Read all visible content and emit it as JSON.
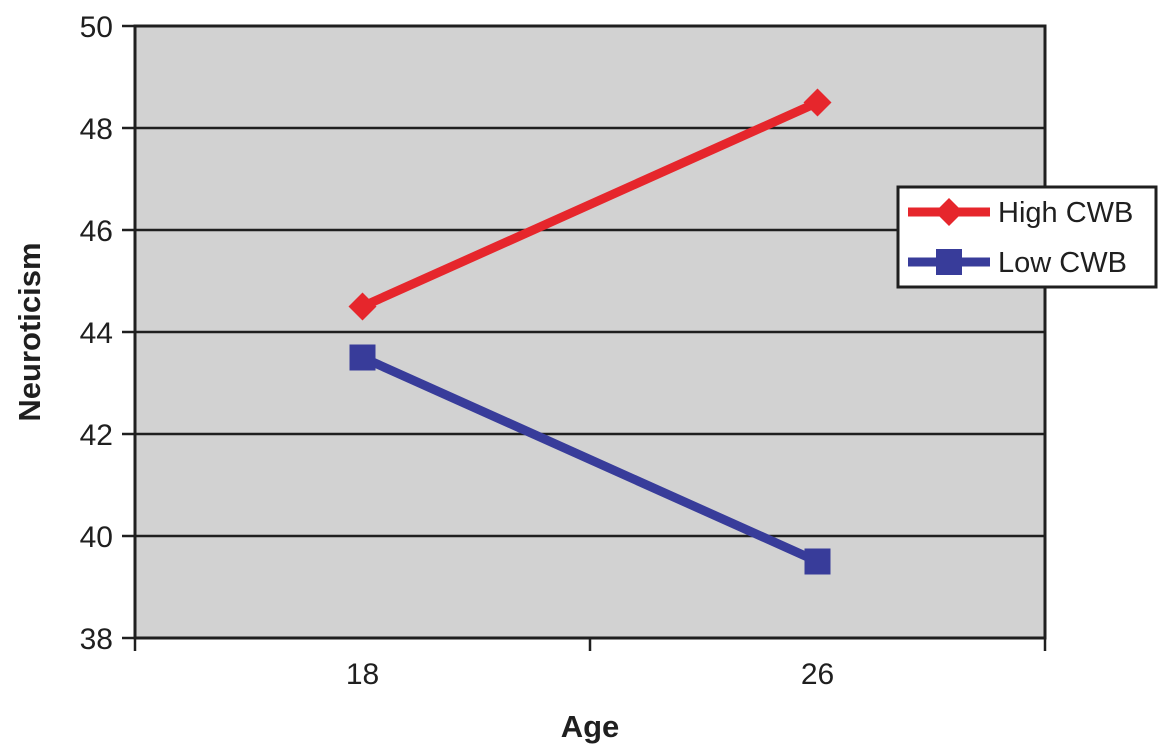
{
  "chart_data": {
    "type": "line",
    "title": "",
    "xlabel": "Age",
    "ylabel": "Neuroticism",
    "categories": [
      "18",
      "26"
    ],
    "series": [
      {
        "name": "High CWB",
        "values": [
          44.5,
          48.5
        ],
        "color": "#e6262c",
        "marker": "diamond"
      },
      {
        "name": "Low CWB",
        "values": [
          43.5,
          39.5
        ],
        "color": "#383c9a",
        "marker": "square"
      }
    ],
    "ylim": [
      38,
      50
    ],
    "yticks": [
      50,
      48,
      46,
      44,
      42,
      40,
      38
    ],
    "grid": "horizontal",
    "legend_position": "middle-right-overlapping-plot-edge",
    "colors": {
      "plot_background": "#d2d2d2",
      "axis_and_text": "#1f1f1f",
      "legend_background": "#ffffff"
    }
  }
}
